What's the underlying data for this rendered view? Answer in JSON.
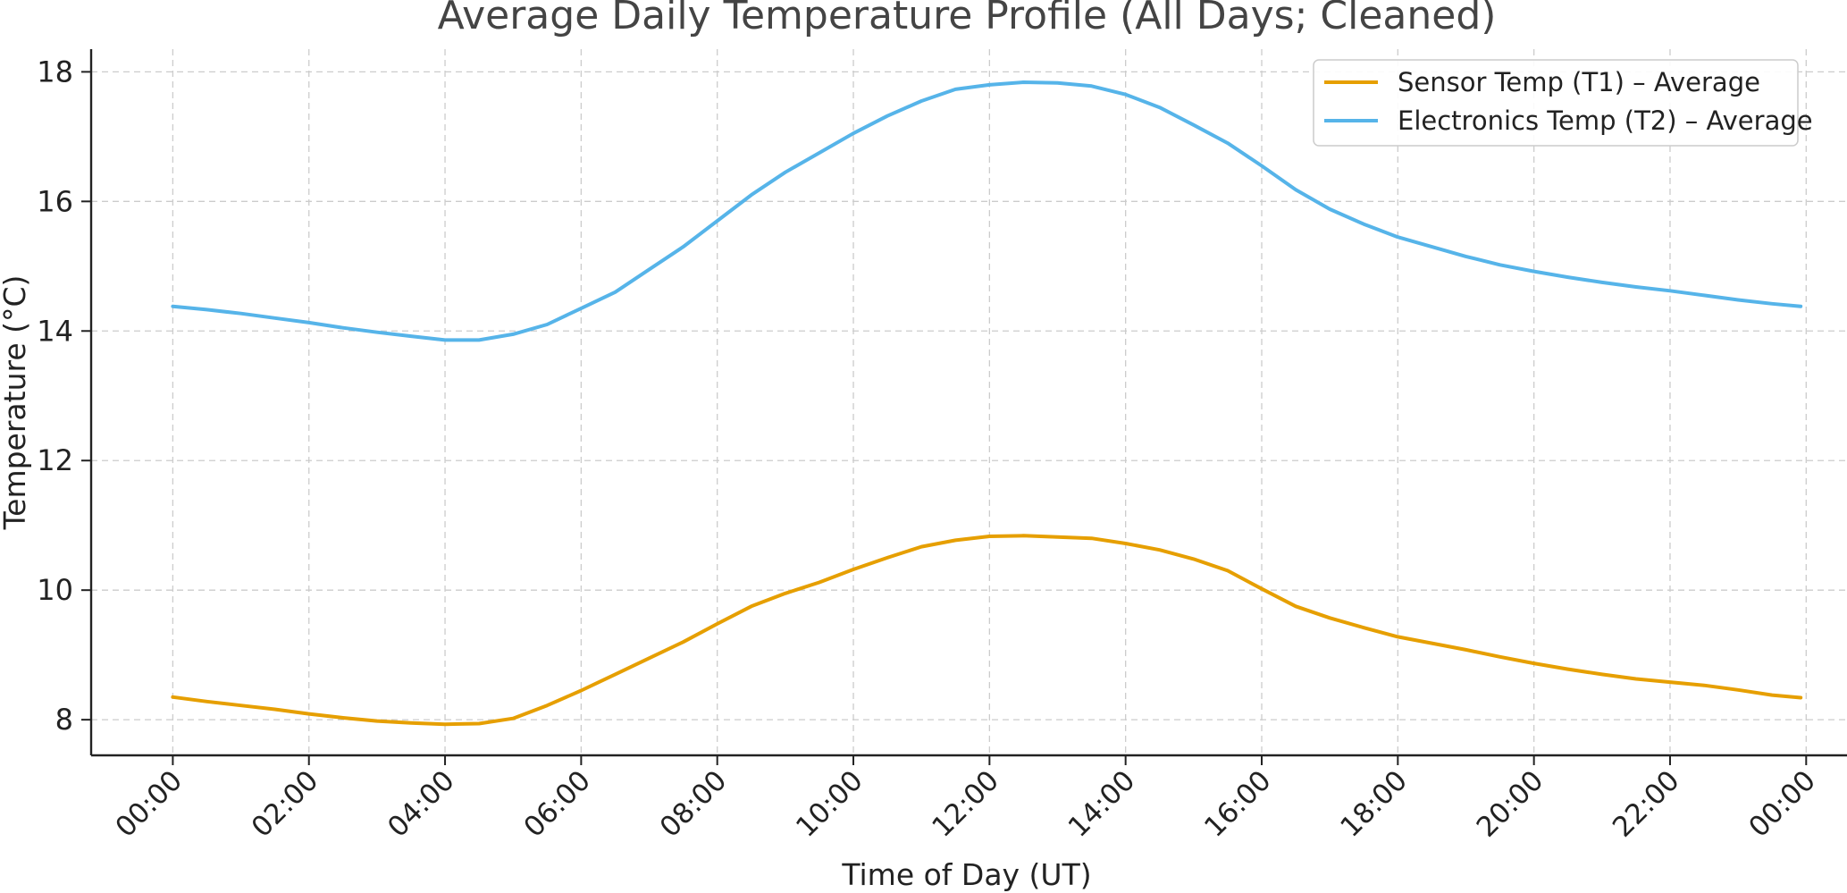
{
  "chart_data": {
    "type": "line",
    "title": "Average Daily Temperature Profile (All Days; Cleaned)",
    "xlabel": "Time of Day (UT)",
    "ylabel": "Temperature (°C)",
    "xlim": [
      -1.2,
      24.6
    ],
    "ylim": [
      7.45,
      18.35
    ],
    "grid": true,
    "legend_position": "top-right",
    "x_ticks": [
      0,
      2,
      4,
      6,
      8,
      10,
      12,
      14,
      16,
      18,
      20,
      22,
      24
    ],
    "x_tick_labels": [
      "00:00",
      "02:00",
      "04:00",
      "06:00",
      "08:00",
      "10:00",
      "12:00",
      "14:00",
      "16:00",
      "18:00",
      "20:00",
      "22:00",
      "00:00"
    ],
    "y_ticks": [
      8,
      10,
      12,
      14,
      16,
      18
    ],
    "y_tick_labels": [
      "8",
      "10",
      "12",
      "14",
      "16",
      "18"
    ],
    "x": [
      0,
      0.5,
      1,
      1.5,
      2,
      2.5,
      3,
      3.5,
      4,
      4.5,
      5,
      5.5,
      6,
      6.5,
      7,
      7.5,
      8,
      8.5,
      9,
      9.5,
      10,
      10.5,
      11,
      11.5,
      12,
      12.5,
      13,
      13.5,
      14,
      14.5,
      15,
      15.5,
      16,
      16.5,
      17,
      17.5,
      18,
      18.5,
      19,
      19.5,
      20,
      20.5,
      21,
      21.5,
      22,
      22.5,
      23,
      23.5,
      23.92
    ],
    "series": [
      {
        "name": "Sensor Temp (T1) – Average",
        "color": "#E69F00",
        "values": [
          8.35,
          8.28,
          8.22,
          8.16,
          8.09,
          8.03,
          7.98,
          7.95,
          7.93,
          7.94,
          8.02,
          8.22,
          8.45,
          8.7,
          8.95,
          9.2,
          9.48,
          9.75,
          9.95,
          10.12,
          10.32,
          10.5,
          10.67,
          10.77,
          10.83,
          10.84,
          10.82,
          10.8,
          10.72,
          10.62,
          10.48,
          10.3,
          10.02,
          9.75,
          9.57,
          9.42,
          9.28,
          9.18,
          9.08,
          8.97,
          8.87,
          8.78,
          8.7,
          8.63,
          8.58,
          8.53,
          8.46,
          8.38,
          8.34
        ]
      },
      {
        "name": "Electronics Temp (T2) – Average",
        "color": "#56B4E9",
        "values": [
          14.38,
          14.33,
          14.27,
          14.2,
          14.13,
          14.05,
          13.98,
          13.92,
          13.86,
          13.86,
          13.95,
          14.1,
          14.35,
          14.6,
          14.95,
          15.3,
          15.7,
          16.1,
          16.45,
          16.75,
          17.05,
          17.32,
          17.55,
          17.73,
          17.8,
          17.84,
          17.83,
          17.78,
          17.65,
          17.45,
          17.18,
          16.9,
          16.55,
          16.18,
          15.88,
          15.65,
          15.45,
          15.3,
          15.15,
          15.02,
          14.92,
          14.83,
          14.75,
          14.68,
          14.62,
          14.55,
          14.48,
          14.42,
          14.38
        ]
      }
    ]
  }
}
